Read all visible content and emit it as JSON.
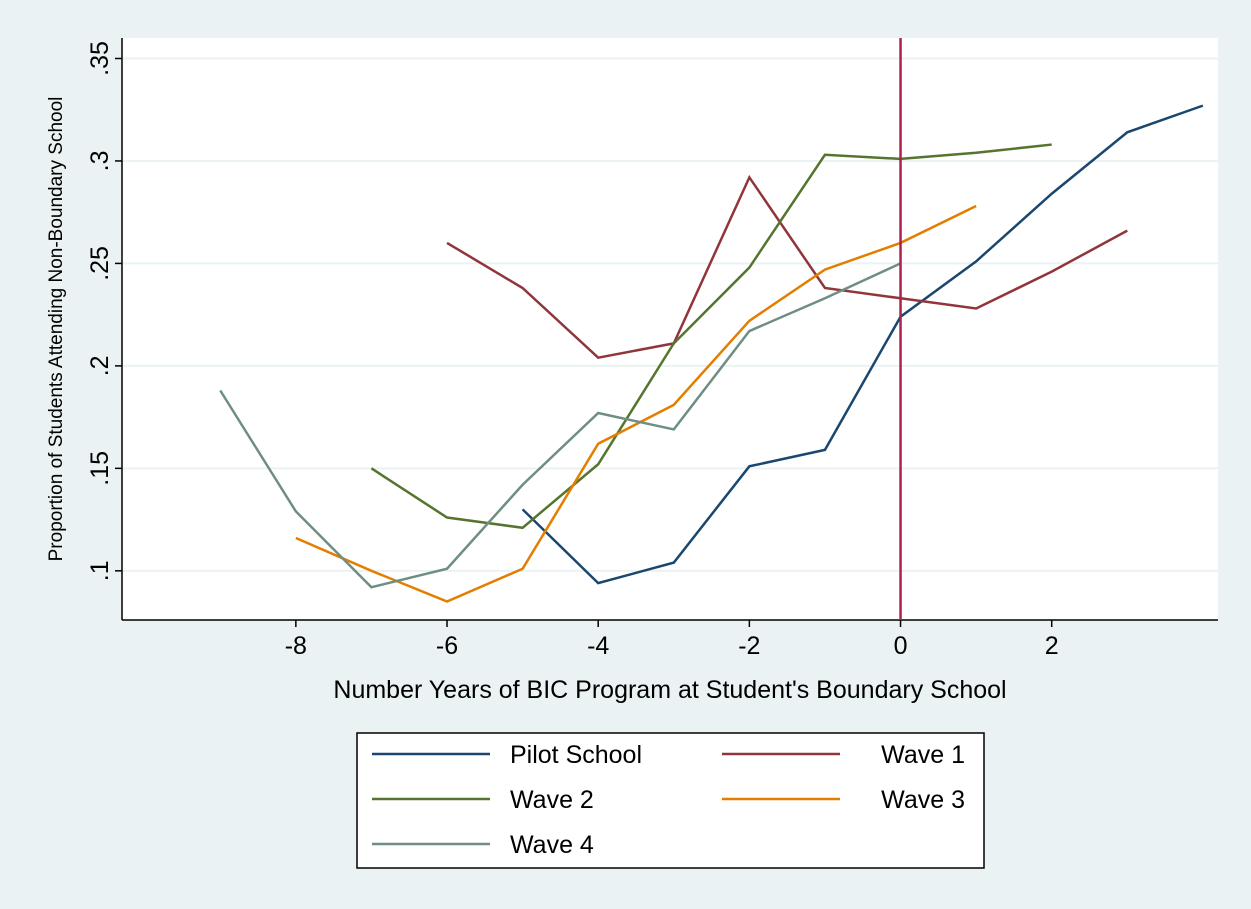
{
  "chart_data": {
    "type": "line",
    "x_label": "Number Years of BIC Program at Student's Boundary School",
    "y_label": "Proportion of Students Attending Non-Boundary School",
    "xlim": [
      -10.3,
      4.2
    ],
    "ylim": [
      0.076,
      0.36
    ],
    "xticks": [
      -8,
      -6,
      -4,
      -2,
      0,
      2
    ],
    "yticks": [
      {
        "value": 0.1,
        "label": ".1"
      },
      {
        "value": 0.15,
        "label": ".15"
      },
      {
        "value": 0.2,
        "label": ".2"
      },
      {
        "value": 0.25,
        "label": ".25"
      },
      {
        "value": 0.3,
        "label": ".3"
      },
      {
        "value": 0.35,
        "label": ".35"
      }
    ],
    "grid": true,
    "reference_line": {
      "x": 0,
      "color": "#b0204c"
    },
    "series": [
      {
        "name": "Pilot School",
        "color": "#1a476f",
        "x": [
          -5,
          -4,
          -3,
          -2,
          -1,
          0,
          1,
          2,
          3,
          4
        ],
        "values": [
          0.13,
          0.094,
          0.104,
          0.151,
          0.159,
          0.224,
          0.251,
          0.284,
          0.314,
          0.327
        ]
      },
      {
        "name": "Wave 1",
        "color": "#90353b",
        "x": [
          -6,
          -5,
          -4,
          -3,
          -2,
          -1,
          0,
          1,
          2,
          3
        ],
        "values": [
          0.26,
          0.238,
          0.204,
          0.211,
          0.292,
          0.238,
          0.233,
          0.228,
          0.246,
          0.266
        ]
      },
      {
        "name": "Wave 2",
        "color": "#55752f",
        "x": [
          -7,
          -6,
          -5,
          -4,
          -3,
          -2,
          -1,
          0,
          1,
          2
        ],
        "values": [
          0.15,
          0.126,
          0.121,
          0.152,
          0.211,
          0.248,
          0.303,
          0.301,
          0.304,
          0.308
        ]
      },
      {
        "name": "Wave 3",
        "color": "#e37e00",
        "x": [
          -8,
          -7,
          -6,
          -5,
          -4,
          -3,
          -2,
          -1,
          0,
          1
        ],
        "values": [
          0.116,
          0.1,
          0.085,
          0.101,
          0.162,
          0.181,
          0.222,
          0.247,
          0.26,
          0.278
        ]
      },
      {
        "name": "Wave 4",
        "color": "#6e8e84",
        "x": [
          -9,
          -8,
          -7,
          -6,
          -5,
          -4,
          -3,
          -2,
          -1,
          0
        ],
        "values": [
          0.188,
          0.129,
          0.092,
          0.101,
          0.142,
          0.177,
          0.169,
          0.217,
          0.233,
          0.25
        ]
      }
    ]
  }
}
